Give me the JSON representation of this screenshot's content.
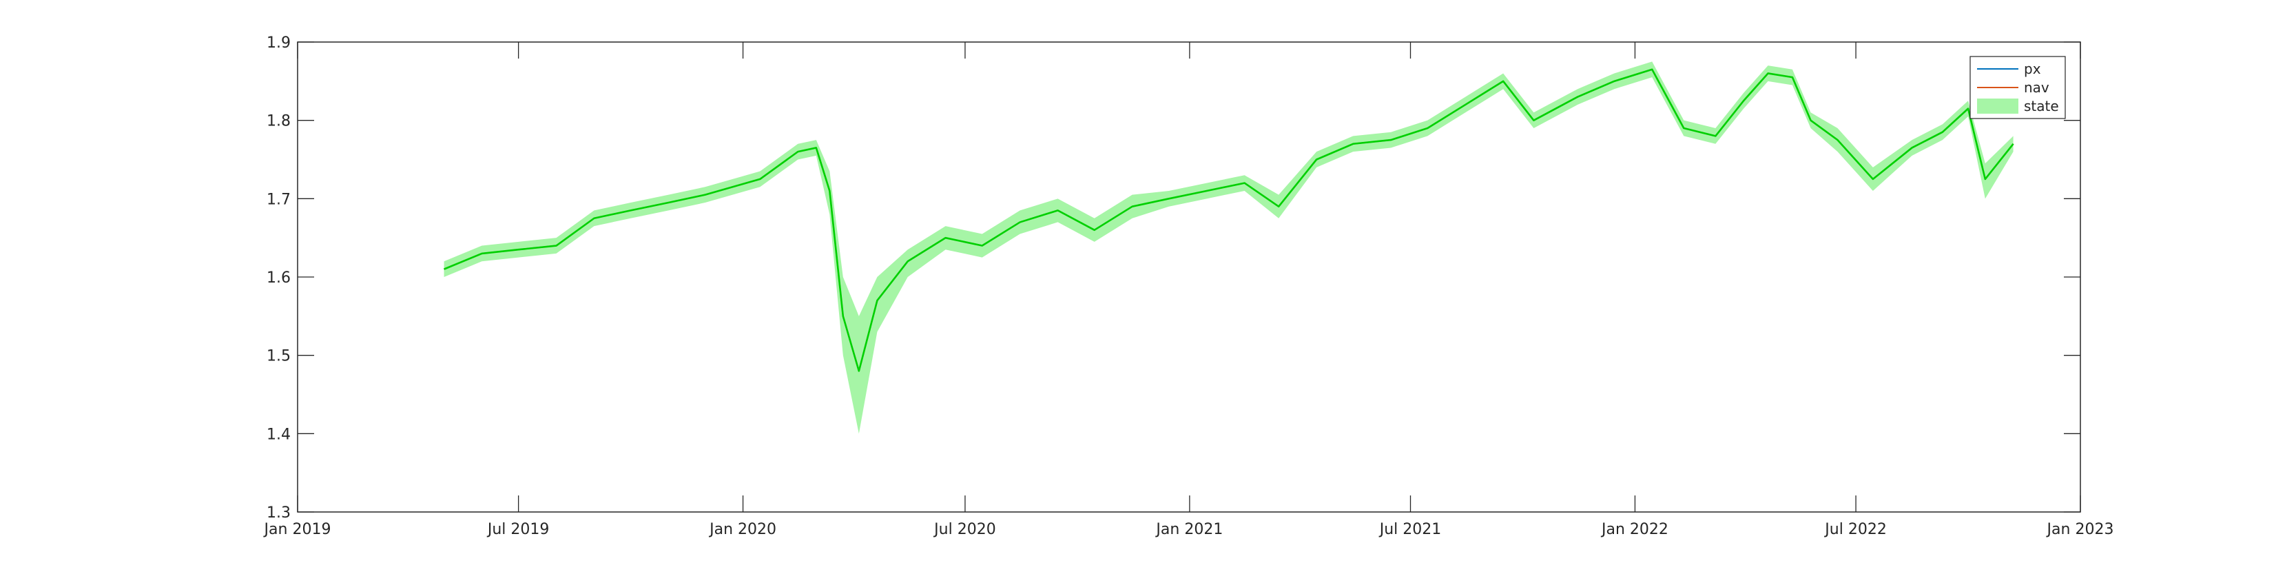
{
  "chart_data": {
    "type": "line",
    "title": "",
    "xlabel": "",
    "ylabel": "",
    "xlim": [
      "2019-01-01",
      "2023-01-01"
    ],
    "ylim": [
      1.3,
      1.9
    ],
    "grid": false,
    "legend_location": "top-right",
    "x_ticks": [
      "2019-01-01",
      "2019-07-01",
      "2020-01-01",
      "2020-07-01",
      "2021-01-01",
      "2021-07-01",
      "2022-01-01",
      "2022-07-01",
      "2023-01-01"
    ],
    "x_tick_labels": [
      "Jan 2019",
      "Jul 2019",
      "Jan 2020",
      "Jul 2020",
      "Jan 2021",
      "Jul 2021",
      "Jan 2022",
      "Jul 2022",
      "Jan 2023"
    ],
    "y_ticks": [
      1.3,
      1.4,
      1.5,
      1.6,
      1.7,
      1.8,
      1.9
    ],
    "y_tick_labels": [
      "1.3",
      "1.4",
      "1.5",
      "1.6",
      "1.7",
      "1.8",
      "1.9"
    ],
    "legend": [
      {
        "label": "px",
        "color": "#0072BD",
        "kind": "line"
      },
      {
        "label": "nav",
        "color": "#D95319",
        "kind": "line"
      },
      {
        "label": "state",
        "color": "#a6f5a6",
        "kind": "patch"
      }
    ],
    "state_line_color": "#00d000",
    "state_band_color": "#a6f5a6",
    "series": [
      {
        "name": "px",
        "x": [
          "2019-05-01",
          "2019-06-01",
          "2019-07-01",
          "2019-08-01",
          "2019-09-01",
          "2019-10-01",
          "2019-11-01",
          "2019-12-01",
          "2020-01-15",
          "2020-02-15",
          "2020-03-01",
          "2020-03-12",
          "2020-03-23",
          "2020-04-05",
          "2020-04-20",
          "2020-05-15",
          "2020-06-15",
          "2020-07-15",
          "2020-08-15",
          "2020-09-15",
          "2020-10-15",
          "2020-11-15",
          "2020-12-15",
          "2021-01-15",
          "2021-02-15",
          "2021-03-15",
          "2021-04-15",
          "2021-05-15",
          "2021-06-15",
          "2021-07-15",
          "2021-08-15",
          "2021-09-15",
          "2021-10-10",
          "2021-11-15",
          "2021-12-15",
          "2022-01-15",
          "2022-02-10",
          "2022-03-08",
          "2022-03-31",
          "2022-04-20",
          "2022-05-10",
          "2022-05-25",
          "2022-06-16",
          "2022-07-15",
          "2022-08-16",
          "2022-09-10",
          "2022-10-01",
          "2022-10-15",
          "2022-11-07"
        ],
        "values": [
          1.61,
          1.63,
          1.635,
          1.64,
          1.675,
          1.685,
          1.695,
          1.705,
          1.725,
          1.76,
          1.765,
          1.71,
          1.55,
          1.48,
          1.57,
          1.62,
          1.65,
          1.64,
          1.67,
          1.685,
          1.66,
          1.69,
          1.7,
          1.71,
          1.72,
          1.69,
          1.75,
          1.77,
          1.775,
          1.79,
          1.82,
          1.85,
          1.8,
          1.83,
          1.85,
          1.865,
          1.79,
          1.78,
          1.825,
          1.86,
          1.855,
          1.8,
          1.775,
          1.725,
          1.765,
          1.785,
          1.815,
          1.725,
          1.77
        ]
      },
      {
        "name": "nav",
        "x": [
          "2019-05-01",
          "2019-06-01",
          "2019-07-01",
          "2019-08-01",
          "2019-09-01",
          "2019-10-01",
          "2019-11-01",
          "2019-12-01",
          "2020-01-15",
          "2020-02-15",
          "2020-03-01",
          "2020-03-12",
          "2020-03-23",
          "2020-04-05",
          "2020-04-20",
          "2020-05-15",
          "2020-06-15",
          "2020-07-15",
          "2020-08-15",
          "2020-09-15",
          "2020-10-15",
          "2020-11-15",
          "2020-12-15",
          "2021-01-15",
          "2021-02-15",
          "2021-03-15",
          "2021-04-15",
          "2021-05-15",
          "2021-06-15",
          "2021-07-15",
          "2021-08-15",
          "2021-09-15",
          "2021-10-10",
          "2021-11-15",
          "2021-12-15",
          "2022-01-15",
          "2022-02-10",
          "2022-03-08",
          "2022-03-31",
          "2022-04-20",
          "2022-05-10",
          "2022-05-25",
          "2022-06-16",
          "2022-07-15",
          "2022-08-16",
          "2022-09-10",
          "2022-10-01",
          "2022-10-15",
          "2022-11-07"
        ],
        "values": [
          1.61,
          1.63,
          1.635,
          1.64,
          1.675,
          1.685,
          1.695,
          1.705,
          1.725,
          1.76,
          1.765,
          1.71,
          1.55,
          1.48,
          1.57,
          1.62,
          1.65,
          1.64,
          1.67,
          1.685,
          1.66,
          1.69,
          1.7,
          1.71,
          1.72,
          1.69,
          1.75,
          1.77,
          1.775,
          1.79,
          1.82,
          1.85,
          1.8,
          1.83,
          1.85,
          1.865,
          1.79,
          1.78,
          1.825,
          1.86,
          1.855,
          1.8,
          1.775,
          1.725,
          1.765,
          1.785,
          1.815,
          1.725,
          1.77
        ]
      },
      {
        "name": "state",
        "x": [
          "2019-05-01",
          "2019-06-01",
          "2019-07-01",
          "2019-08-01",
          "2019-09-01",
          "2019-10-01",
          "2019-11-01",
          "2019-12-01",
          "2020-01-15",
          "2020-02-15",
          "2020-03-01",
          "2020-03-12",
          "2020-03-23",
          "2020-04-05",
          "2020-04-20",
          "2020-05-15",
          "2020-06-15",
          "2020-07-15",
          "2020-08-15",
          "2020-09-15",
          "2020-10-15",
          "2020-11-15",
          "2020-12-15",
          "2021-01-15",
          "2021-02-15",
          "2021-03-15",
          "2021-04-15",
          "2021-05-15",
          "2021-06-15",
          "2021-07-15",
          "2021-08-15",
          "2021-09-15",
          "2021-10-10",
          "2021-11-15",
          "2021-12-15",
          "2022-01-15",
          "2022-02-10",
          "2022-03-08",
          "2022-03-31",
          "2022-04-20",
          "2022-05-10",
          "2022-05-25",
          "2022-06-16",
          "2022-07-15",
          "2022-08-16",
          "2022-09-10",
          "2022-10-01",
          "2022-10-15",
          "2022-11-07"
        ],
        "values": [
          1.61,
          1.63,
          1.635,
          1.64,
          1.675,
          1.685,
          1.695,
          1.705,
          1.725,
          1.76,
          1.765,
          1.71,
          1.55,
          1.48,
          1.57,
          1.62,
          1.65,
          1.64,
          1.67,
          1.685,
          1.66,
          1.69,
          1.7,
          1.71,
          1.72,
          1.69,
          1.75,
          1.77,
          1.775,
          1.79,
          1.82,
          1.85,
          1.8,
          1.83,
          1.85,
          1.865,
          1.79,
          1.78,
          1.825,
          1.86,
          1.855,
          1.8,
          1.775,
          1.725,
          1.765,
          1.785,
          1.815,
          1.725,
          1.77
        ],
        "lower": [
          1.6,
          1.62,
          1.625,
          1.63,
          1.665,
          1.675,
          1.685,
          1.695,
          1.715,
          1.75,
          1.755,
          1.68,
          1.5,
          1.4,
          1.53,
          1.6,
          1.635,
          1.625,
          1.655,
          1.67,
          1.645,
          1.675,
          1.69,
          1.7,
          1.71,
          1.675,
          1.74,
          1.76,
          1.765,
          1.78,
          1.81,
          1.84,
          1.79,
          1.82,
          1.84,
          1.855,
          1.78,
          1.77,
          1.815,
          1.85,
          1.845,
          1.79,
          1.76,
          1.71,
          1.755,
          1.775,
          1.805,
          1.7,
          1.76
        ],
        "upper": [
          1.62,
          1.64,
          1.645,
          1.65,
          1.685,
          1.695,
          1.705,
          1.715,
          1.735,
          1.77,
          1.775,
          1.735,
          1.6,
          1.55,
          1.6,
          1.635,
          1.665,
          1.655,
          1.685,
          1.7,
          1.675,
          1.705,
          1.71,
          1.72,
          1.73,
          1.705,
          1.76,
          1.78,
          1.785,
          1.8,
          1.83,
          1.86,
          1.81,
          1.84,
          1.86,
          1.875,
          1.8,
          1.79,
          1.835,
          1.87,
          1.865,
          1.81,
          1.79,
          1.74,
          1.775,
          1.795,
          1.825,
          1.745,
          1.78
        ]
      }
    ]
  }
}
